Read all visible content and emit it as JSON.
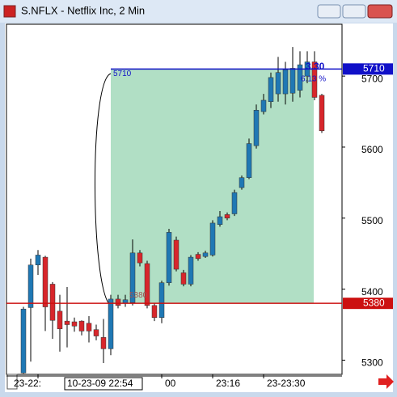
{
  "chart_data": {
    "type": "candlestick",
    "title": "S.NFLX - Netflix Inc, 2 Min",
    "open": [
      5282,
      5374,
      5434,
      5445,
      5407,
      5369,
      5355,
      5354,
      5355,
      5352,
      5343,
      5332,
      5316,
      5386,
      5380,
      5381,
      5451,
      5436,
      5377,
      5360,
      5409,
      5469,
      5423,
      5407,
      5449,
      5446,
      5448,
      5491,
      5505,
      5506,
      5543,
      5557,
      5602,
      5650,
      5664,
      5675,
      5675,
      5676,
      5680,
      5700,
      5720,
      5673
    ],
    "high": [
      5375,
      5443,
      5455,
      5447,
      5410,
      5392,
      5403,
      5360,
      5356,
      5362,
      5350,
      5358,
      5392,
      5392,
      5392,
      5470,
      5455,
      5440,
      5380,
      5412,
      5485,
      5474,
      5427,
      5448,
      5452,
      5454,
      5497,
      5510,
      5508,
      5540,
      5560,
      5612,
      5660,
      5675,
      5705,
      5727,
      5720,
      5741,
      5735,
      5735,
      5735,
      5675
    ],
    "low": [
      5281,
      5298,
      5420,
      5341,
      5330,
      5312,
      5318,
      5340,
      5335,
      5325,
      5328,
      5296,
      5307,
      5373,
      5375,
      5377,
      5432,
      5373,
      5355,
      5352,
      5405,
      5425,
      5404,
      5404,
      5440,
      5444,
      5446,
      5488,
      5497,
      5503,
      5540,
      5555,
      5598,
      5646,
      5655,
      5664,
      5660,
      5664,
      5670,
      5690,
      5666,
      5620
    ],
    "close": [
      5372,
      5434,
      5448,
      5375,
      5356,
      5344,
      5350,
      5348,
      5341,
      5341,
      5334,
      5316,
      5386,
      5377,
      5385,
      5451,
      5437,
      5377,
      5360,
      5409,
      5480,
      5428,
      5407,
      5445,
      5443,
      5451,
      5493,
      5502,
      5500,
      5536,
      5557,
      5605,
      5652,
      5666,
      5698,
      5705,
      5709,
      5711,
      5716,
      5720,
      5670,
      5623
    ],
    "categories": [
      null,
      null,
      "23-22:",
      null,
      null,
      null,
      null,
      null,
      null,
      null,
      null,
      null,
      null,
      null,
      null,
      null,
      null,
      null,
      null,
      "00",
      null,
      null,
      null,
      null,
      null,
      null,
      "23:16",
      null,
      null,
      null,
      null,
      null,
      null,
      "23-23:30",
      null,
      null,
      null,
      null,
      null,
      null,
      null,
      null
    ],
    "cursor_label": "10-23-09 22:54",
    "up_color": "#1f78b4",
    "down_color": "#d7262b",
    "ylim": [
      5280,
      5773
    ],
    "yticks": [
      5300,
      5400,
      5500,
      5600,
      5700
    ],
    "levels": [
      {
        "value": 5710,
        "color": "#1010c8"
      },
      {
        "value": 5380,
        "color": "#cc1010"
      }
    ],
    "zone_color": "#a8dcbf",
    "annotations": [
      "3.30",
      "6.13 %"
    ]
  }
}
